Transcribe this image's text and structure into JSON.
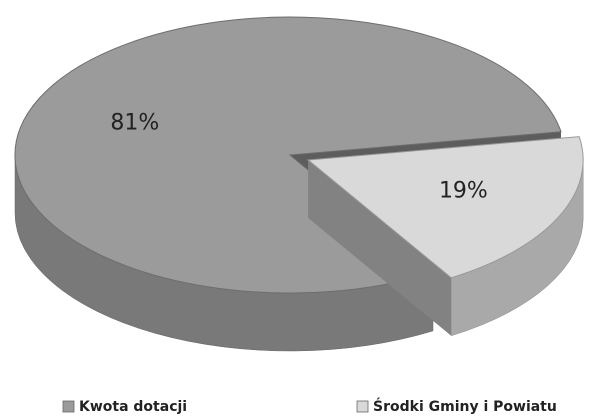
{
  "chart_data": {
    "type": "pie3d",
    "categories": [
      "Kwota dotacji",
      "Środki Gminy i Powiatu"
    ],
    "values": [
      81,
      19
    ],
    "value_labels": [
      "81%",
      "19%"
    ],
    "colors": [
      "#9b9b9b",
      "#d9d9d9"
    ],
    "exploded": [
      false,
      true
    ]
  }
}
